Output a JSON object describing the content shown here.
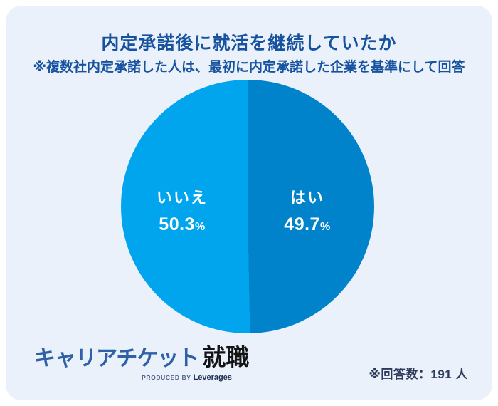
{
  "header": {
    "title": "内定承諾後に就活を継続していたか",
    "subtitle": "※複数社内定承諾した人は、最初に内定承諾した企業を基準にして回答"
  },
  "chart_data": {
    "type": "pie",
    "title": "内定承諾後に就活を継続していたか",
    "unit": "%",
    "start_angle_deg": 0,
    "direction": "clockwise",
    "label_color": "#FFFFFF",
    "respondents": 191,
    "slices": [
      {
        "label": "はい",
        "value": 49.7,
        "color": "#0083CB"
      },
      {
        "label": "いいえ",
        "value": 50.3,
        "color": "#00A5EE"
      }
    ]
  },
  "footer": {
    "logo": {
      "brand_main": "キャリアチケット",
      "brand_suffix": "就職",
      "byline_prefix": "PRODUCED BY",
      "byline_brand": "Leverages"
    },
    "respondents": "※回答数：191 人"
  },
  "colors": {
    "card_background": "#EAF1FA",
    "page_background": "#FFFFFF",
    "heading_text": "#16529E",
    "footer_text": "#2C3A5A",
    "logo_blue": "#2E61A8",
    "logo_black": "#141414"
  }
}
